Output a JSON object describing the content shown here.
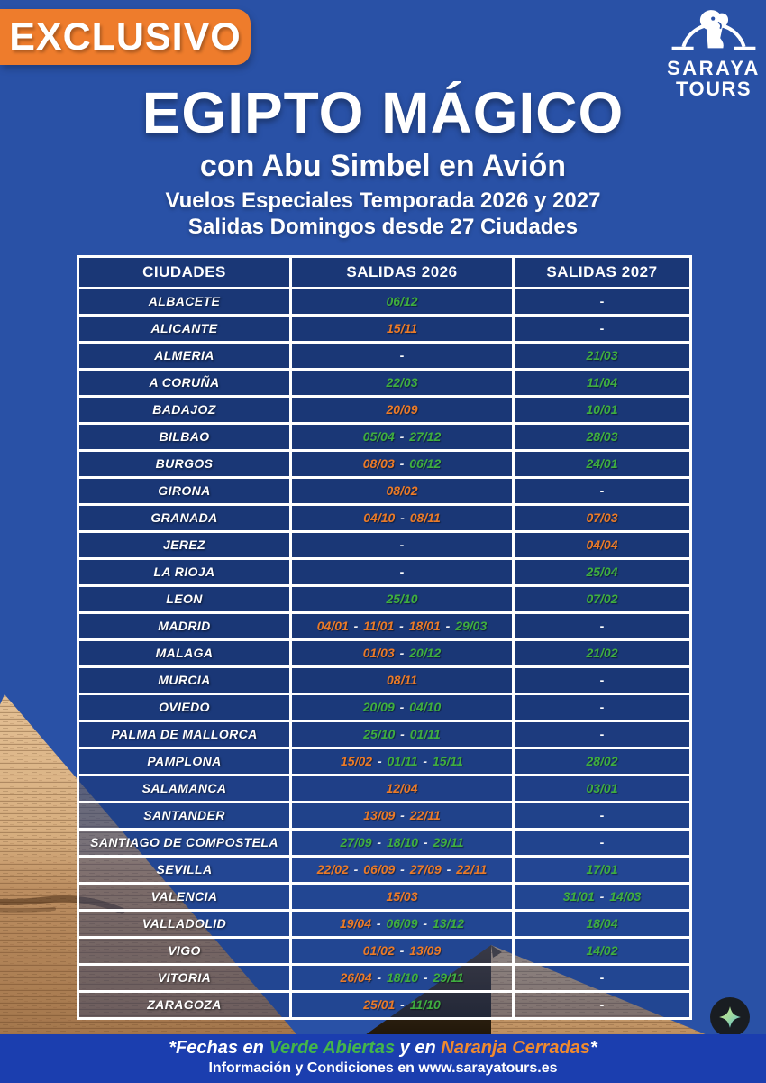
{
  "badge": {
    "label": "EXCLUSIVO"
  },
  "logo": {
    "name": "SARAYA",
    "sub": "TOURS"
  },
  "header": {
    "title": "EGIPTO MÁGICO",
    "subtitle": "con Abu Simbel en Avión",
    "season_line": "Vuelos Especiales Temporada 2026 y 2027",
    "departures_line": "Salidas Domingos desde 27 Ciudades"
  },
  "table": {
    "headers": [
      "CIUDADES",
      "SALIDAS 2026",
      "SALIDAS 2027"
    ],
    "empty_marker": "-",
    "date_separator": "-",
    "rows": [
      {
        "city": "ALBACETE",
        "s2026": [
          {
            "d": "06/12",
            "c": "g"
          }
        ],
        "s2027": []
      },
      {
        "city": "ALICANTE",
        "s2026": [
          {
            "d": "15/11",
            "c": "o"
          }
        ],
        "s2027": []
      },
      {
        "city": "ALMERIA",
        "s2026": [],
        "s2027": [
          {
            "d": "21/03",
            "c": "g"
          }
        ]
      },
      {
        "city": "A CORUÑA",
        "s2026": [
          {
            "d": "22/03",
            "c": "g"
          }
        ],
        "s2027": [
          {
            "d": "11/04",
            "c": "g"
          }
        ]
      },
      {
        "city": "BADAJOZ",
        "s2026": [
          {
            "d": "20/09",
            "c": "o"
          }
        ],
        "s2027": [
          {
            "d": "10/01",
            "c": "g"
          }
        ]
      },
      {
        "city": "BILBAO",
        "s2026": [
          {
            "d": "05/04",
            "c": "g"
          },
          {
            "d": "27/12",
            "c": "g"
          }
        ],
        "s2027": [
          {
            "d": "28/03",
            "c": "g"
          }
        ]
      },
      {
        "city": "BURGOS",
        "s2026": [
          {
            "d": "08/03",
            "c": "o"
          },
          {
            "d": "06/12",
            "c": "g"
          }
        ],
        "s2027": [
          {
            "d": "24/01",
            "c": "g"
          }
        ]
      },
      {
        "city": "GIRONA",
        "s2026": [
          {
            "d": "08/02",
            "c": "o"
          }
        ],
        "s2027": []
      },
      {
        "city": "GRANADA",
        "s2026": [
          {
            "d": "04/10",
            "c": "o"
          },
          {
            "d": "08/11",
            "c": "o"
          }
        ],
        "s2027": [
          {
            "d": "07/03",
            "c": "o"
          }
        ]
      },
      {
        "city": "JEREZ",
        "s2026": [],
        "s2027": [
          {
            "d": "04/04",
            "c": "o"
          }
        ]
      },
      {
        "city": "LA RIOJA",
        "s2026": [],
        "s2027": [
          {
            "d": "25/04",
            "c": "g"
          }
        ]
      },
      {
        "city": "LEON",
        "s2026": [
          {
            "d": "25/10",
            "c": "g"
          }
        ],
        "s2027": [
          {
            "d": "07/02",
            "c": "g"
          }
        ]
      },
      {
        "city": "MADRID",
        "s2026": [
          {
            "d": "04/01",
            "c": "o"
          },
          {
            "d": "11/01",
            "c": "o"
          },
          {
            "d": "18/01",
            "c": "o"
          },
          {
            "d": "29/03",
            "c": "g"
          }
        ],
        "s2027": []
      },
      {
        "city": "MALAGA",
        "s2026": [
          {
            "d": "01/03",
            "c": "o"
          },
          {
            "d": "20/12",
            "c": "g"
          }
        ],
        "s2027": [
          {
            "d": "21/02",
            "c": "g"
          }
        ]
      },
      {
        "city": "MURCIA",
        "s2026": [
          {
            "d": "08/11",
            "c": "o"
          }
        ],
        "s2027": []
      },
      {
        "city": "OVIEDO",
        "s2026": [
          {
            "d": "20/09",
            "c": "g"
          },
          {
            "d": "04/10",
            "c": "g"
          }
        ],
        "s2027": []
      },
      {
        "city": "PALMA DE MALLORCA",
        "s2026": [
          {
            "d": "25/10",
            "c": "g"
          },
          {
            "d": "01/11",
            "c": "g"
          }
        ],
        "s2027": []
      },
      {
        "city": "PAMPLONA",
        "s2026": [
          {
            "d": "15/02",
            "c": "o"
          },
          {
            "d": "01/11",
            "c": "g"
          },
          {
            "d": "15/11",
            "c": "g"
          }
        ],
        "s2027": [
          {
            "d": "28/02",
            "c": "g"
          }
        ]
      },
      {
        "city": "SALAMANCA",
        "s2026": [
          {
            "d": "12/04",
            "c": "o"
          }
        ],
        "s2027": [
          {
            "d": "03/01",
            "c": "g"
          }
        ]
      },
      {
        "city": "SANTANDER",
        "s2026": [
          {
            "d": "13/09",
            "c": "o"
          },
          {
            "d": "22/11",
            "c": "o"
          }
        ],
        "s2027": []
      },
      {
        "city": "SANTIAGO DE COMPOSTELA",
        "s2026": [
          {
            "d": "27/09",
            "c": "g"
          },
          {
            "d": "18/10",
            "c": "g"
          },
          {
            "d": "29/11",
            "c": "g"
          }
        ],
        "s2027": []
      },
      {
        "city": "SEVILLA",
        "s2026": [
          {
            "d": "22/02",
            "c": "o"
          },
          {
            "d": "06/09",
            "c": "o"
          },
          {
            "d": "27/09",
            "c": "o"
          },
          {
            "d": "22/11",
            "c": "o"
          }
        ],
        "s2027": [
          {
            "d": "17/01",
            "c": "g"
          }
        ]
      },
      {
        "city": "VALENCIA",
        "s2026": [
          {
            "d": "15/03",
            "c": "o"
          }
        ],
        "s2027": [
          {
            "d": "31/01",
            "c": "g"
          },
          {
            "d": "14/03",
            "c": "g"
          }
        ]
      },
      {
        "city": "VALLADOLID",
        "s2026": [
          {
            "d": "19/04",
            "c": "o"
          },
          {
            "d": "06/09",
            "c": "g"
          },
          {
            "d": "13/12",
            "c": "g"
          }
        ],
        "s2027": [
          {
            "d": "18/04",
            "c": "g"
          }
        ]
      },
      {
        "city": "VIGO",
        "s2026": [
          {
            "d": "01/02",
            "c": "o"
          },
          {
            "d": "13/09",
            "c": "o"
          }
        ],
        "s2027": [
          {
            "d": "14/02",
            "c": "g"
          }
        ]
      },
      {
        "city": "VITORIA",
        "s2026": [
          {
            "d": "26/04",
            "c": "o"
          },
          {
            "d": "18/10",
            "c": "g"
          },
          {
            "d": "29/11",
            "c": "g"
          }
        ],
        "s2027": []
      },
      {
        "city": "ZARAGOZA",
        "s2026": [
          {
            "d": "25/01",
            "c": "o"
          },
          {
            "d": "11/10",
            "c": "g"
          }
        ],
        "s2027": []
      }
    ]
  },
  "footer": {
    "note_parts": [
      {
        "t": "*Fechas en ",
        "c": "w"
      },
      {
        "t": "Verde Abiertas",
        "c": "g"
      },
      {
        "t": " y en ",
        "c": "w"
      },
      {
        "t": "Naranja Cerradas",
        "c": "o"
      },
      {
        "t": "*",
        "c": "w"
      }
    ],
    "info": "Información y Condiciones en www.sarayatours.es"
  },
  "colors": {
    "page_bg": "#2951A6",
    "cell_navy": "#1A3776",
    "badge_orange": "#EE7C2C",
    "date_green": "#3FAE3F",
    "date_orange": "#EA7A28",
    "footer_bg": "#1B3EAF"
  }
}
